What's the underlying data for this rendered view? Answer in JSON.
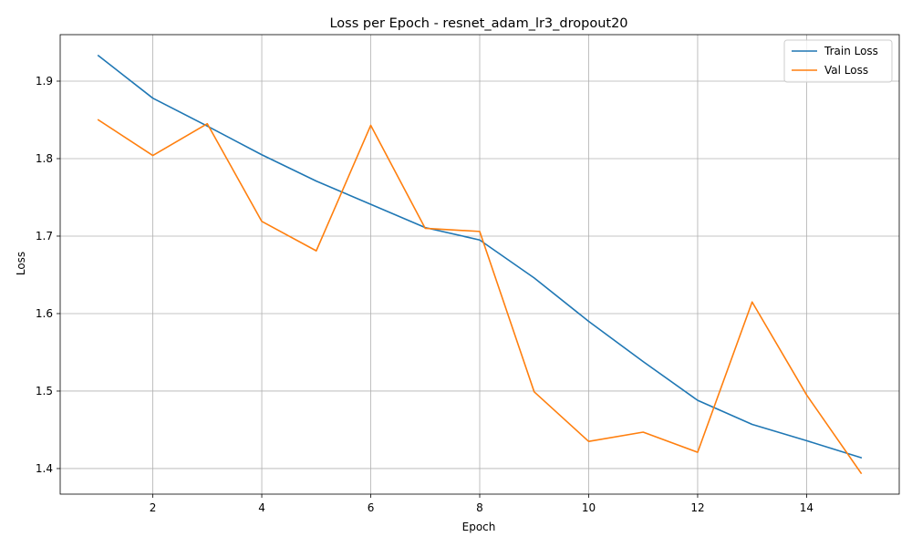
{
  "chart_data": {
    "type": "line",
    "title": "Loss per Epoch - resnet_adam_lr3_dropout20",
    "xlabel": "Epoch",
    "ylabel": "Loss",
    "x": [
      1,
      2,
      3,
      4,
      5,
      6,
      7,
      8,
      9,
      10,
      11,
      12,
      13,
      14,
      15
    ],
    "xticks": [
      2,
      4,
      6,
      8,
      10,
      12,
      14
    ],
    "yticks": [
      1.4,
      1.5,
      1.6,
      1.7,
      1.8,
      1.9
    ],
    "ytick_labels": [
      "1.4",
      "1.5",
      "1.6",
      "1.7",
      "1.8",
      "1.9"
    ],
    "xlim": [
      0.3,
      15.7
    ],
    "ylim": [
      1.367,
      1.96
    ],
    "grid": true,
    "legend_position": "top-right",
    "series": [
      {
        "name": "Train Loss",
        "color": "#1f77b4",
        "values": [
          1.933,
          1.878,
          1.842,
          1.805,
          1.771,
          1.741,
          1.711,
          1.695,
          1.646,
          1.59,
          1.538,
          1.488,
          1.457,
          1.436,
          1.414
        ]
      },
      {
        "name": "Val Loss",
        "color": "#ff7f0e",
        "values": [
          1.85,
          1.804,
          1.845,
          1.719,
          1.681,
          1.843,
          1.71,
          1.706,
          1.499,
          1.435,
          1.447,
          1.421,
          1.615,
          1.495,
          1.394
        ]
      }
    ]
  }
}
